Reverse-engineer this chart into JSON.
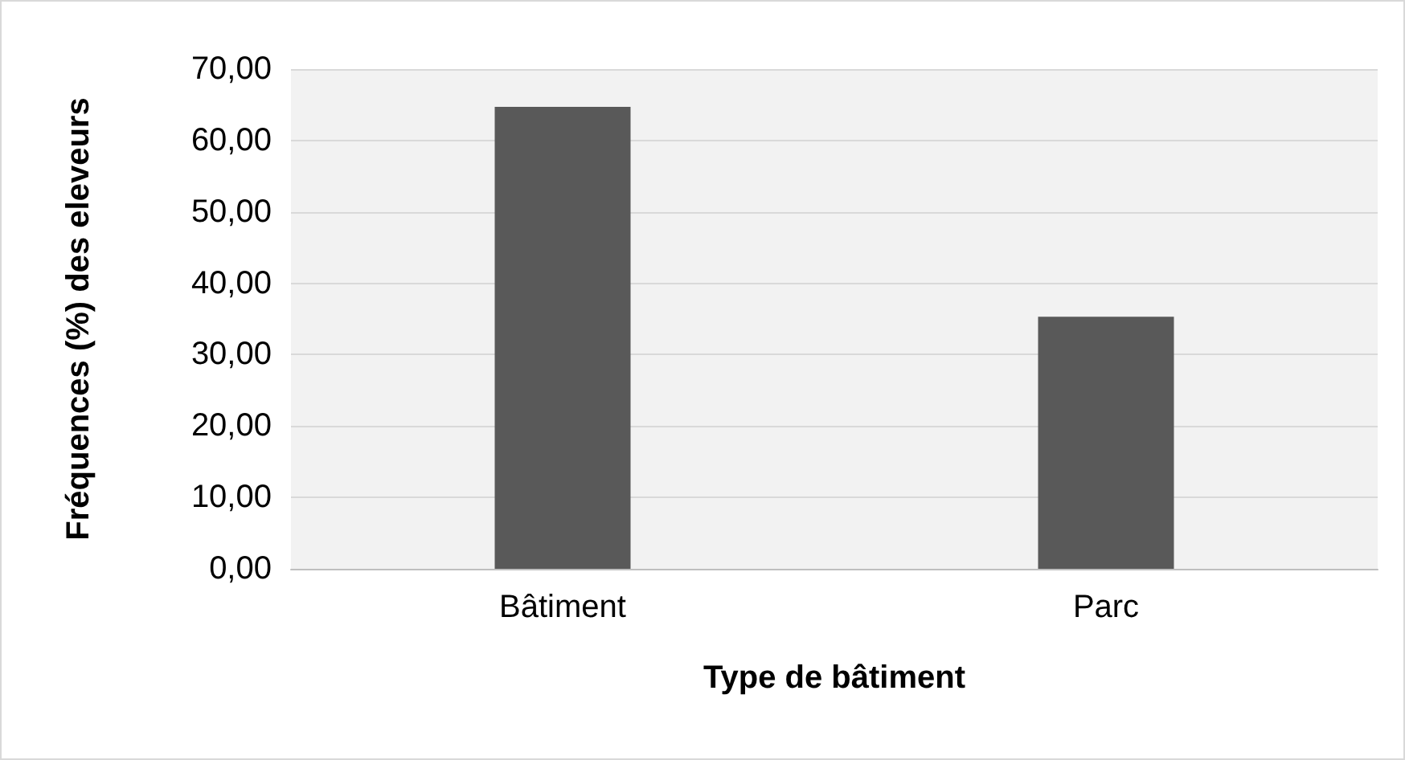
{
  "chart_data": {
    "type": "bar",
    "xlabel": "Type de bâtiment",
    "ylabel": "Fréquences (%) des eleveurs",
    "categories": [
      "Bâtiment",
      "Parc"
    ],
    "values": [
      64.7,
      35.3
    ],
    "color": "#595959",
    "ylim": [
      0,
      70
    ],
    "yticks": [
      {
        "value": 0,
        "label": "0,00"
      },
      {
        "value": 10,
        "label": "10,00"
      },
      {
        "value": 20,
        "label": "20,00"
      },
      {
        "value": 30,
        "label": "30,00"
      },
      {
        "value": 40,
        "label": "40,00"
      },
      {
        "value": 50,
        "label": "50,00"
      },
      {
        "value": 60,
        "label": "60,00"
      },
      {
        "value": 70,
        "label": "70,00"
      }
    ],
    "grid": "y"
  }
}
